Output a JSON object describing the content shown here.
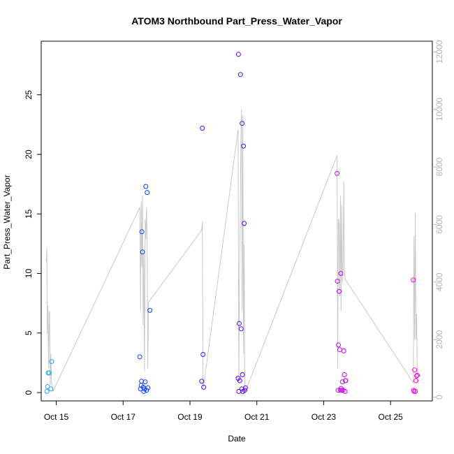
{
  "chart_data": {
    "type": "scatter",
    "title": "ATOM3 Northbound Part_Press_Water_Vapor",
    "xlabel": "Date",
    "ylabel": "Part_Press_Water_Vapor",
    "x_axis": {
      "unit": "day (October)",
      "range": [
        14.55,
        26.25
      ],
      "ticks": [
        15,
        17,
        19,
        21,
        23,
        25
      ],
      "tick_labels": [
        "Oct 15",
        "Oct 17",
        "Oct 19",
        "Oct 21",
        "Oct 23",
        "Oct 25"
      ]
    },
    "y_axis": {
      "range": [
        -0.7,
        29.5
      ],
      "ticks": [
        0,
        5,
        10,
        15,
        20,
        25
      ],
      "tick_labels": [
        "0",
        "5",
        "10",
        "15",
        "20",
        "25"
      ]
    },
    "y2_axis": {
      "range": [
        -130,
        12370
      ],
      "ticks": [
        0,
        2000,
        4000,
        6000,
        8000,
        10000,
        12000
      ],
      "tick_labels": [
        "0",
        "2000",
        "4000",
        "6000",
        "8000",
        "10000",
        "12000"
      ],
      "color": "#b4b4b4"
    },
    "grid": false,
    "legend": "none",
    "series": [
      {
        "style": "points",
        "marker": "open-circle",
        "colors_by_time": [
          "#22aaee",
          "#0044ff",
          "#5500ff",
          "#bb00ff",
          "#ff00dd"
        ],
        "points": [
          [
            14.72,
            0.1
          ],
          [
            14.74,
            0.5
          ],
          [
            14.76,
            1.65
          ],
          [
            14.79,
            1.65
          ],
          [
            14.84,
            0.3
          ],
          [
            14.86,
            2.6
          ],
          [
            17.5,
            3.0
          ],
          [
            17.52,
            0.3
          ],
          [
            17.54,
            0.6
          ],
          [
            17.55,
            0.95
          ],
          [
            17.56,
            13.5
          ],
          [
            17.58,
            11.8
          ],
          [
            17.6,
            0.45
          ],
          [
            17.62,
            0.1
          ],
          [
            17.64,
            0.3
          ],
          [
            17.66,
            0.9
          ],
          [
            17.68,
            17.3
          ],
          [
            17.7,
            0.2
          ],
          [
            17.72,
            16.8
          ],
          [
            17.74,
            0.4
          ],
          [
            17.8,
            6.9
          ],
          [
            19.35,
            0.95
          ],
          [
            19.37,
            22.2
          ],
          [
            19.39,
            3.2
          ],
          [
            19.41,
            0.45
          ],
          [
            20.44,
            1.2
          ],
          [
            20.45,
            28.4
          ],
          [
            20.46,
            0.1
          ],
          [
            20.47,
            5.8
          ],
          [
            20.49,
            1.0
          ],
          [
            20.51,
            26.7
          ],
          [
            20.53,
            5.35
          ],
          [
            20.55,
            0.3
          ],
          [
            20.56,
            22.6
          ],
          [
            20.57,
            1.5
          ],
          [
            20.58,
            0.1
          ],
          [
            20.6,
            20.7
          ],
          [
            20.62,
            14.2
          ],
          [
            20.64,
            0.2
          ],
          [
            20.66,
            0.4
          ],
          [
            23.4,
            18.4
          ],
          [
            23.41,
            9.35
          ],
          [
            23.43,
            0.2
          ],
          [
            23.44,
            4.0
          ],
          [
            23.46,
            8.5
          ],
          [
            23.48,
            3.6
          ],
          [
            23.5,
            0.2
          ],
          [
            23.51,
            10.0
          ],
          [
            23.52,
            0.35
          ],
          [
            23.54,
            0.2
          ],
          [
            23.56,
            0.9
          ],
          [
            23.58,
            0.2
          ],
          [
            23.6,
            3.5
          ],
          [
            23.62,
            1.5
          ],
          [
            23.64,
            0.1
          ],
          [
            23.65,
            1.0
          ],
          [
            23.66,
            1.0
          ],
          [
            25.68,
            9.45
          ],
          [
            25.69,
            0.2
          ],
          [
            25.7,
            0.1
          ],
          [
            25.72,
            1.9
          ],
          [
            25.74,
            0.1
          ],
          [
            25.76,
            1.0
          ],
          [
            25.78,
            1.4
          ],
          [
            25.8,
            1.45
          ]
        ]
      },
      {
        "style": "line",
        "axis": "y2",
        "color": "#c8c8c8",
        "points": [
          [
            14.7,
            4700
          ],
          [
            14.72,
            5200
          ],
          [
            14.73,
            2200
          ],
          [
            14.75,
            3200
          ],
          [
            14.77,
            1000
          ],
          [
            14.79,
            2900
          ],
          [
            14.8,
            3000
          ],
          [
            14.82,
            400
          ],
          [
            14.84,
            1500
          ],
          [
            14.86,
            500
          ],
          [
            14.9,
            200
          ],
          [
            17.5,
            6600
          ],
          [
            17.52,
            3000
          ],
          [
            17.54,
            6800
          ],
          [
            17.56,
            4500
          ],
          [
            17.58,
            7000
          ],
          [
            17.6,
            2500
          ],
          [
            17.62,
            5000
          ],
          [
            17.64,
            900
          ],
          [
            17.66,
            6200
          ],
          [
            17.68,
            5500
          ],
          [
            17.7,
            6600
          ],
          [
            17.72,
            5300
          ],
          [
            17.74,
            1000
          ],
          [
            17.76,
            3300
          ],
          [
            19.35,
            5800
          ],
          [
            19.37,
            6100
          ],
          [
            19.39,
            300
          ],
          [
            19.41,
            400
          ],
          [
            20.44,
            9300
          ],
          [
            20.46,
            500
          ],
          [
            20.48,
            4000
          ],
          [
            20.5,
            6000
          ],
          [
            20.52,
            8500
          ],
          [
            20.54,
            10000
          ],
          [
            20.56,
            3000
          ],
          [
            20.58,
            9800
          ],
          [
            20.6,
            1500
          ],
          [
            20.62,
            5300
          ],
          [
            20.64,
            300
          ],
          [
            20.66,
            200
          ],
          [
            23.4,
            8400
          ],
          [
            23.42,
            1000
          ],
          [
            23.44,
            6200
          ],
          [
            23.46,
            6000
          ],
          [
            23.48,
            3500
          ],
          [
            23.5,
            7000
          ],
          [
            23.52,
            3000
          ],
          [
            23.54,
            6700
          ],
          [
            23.56,
            4000
          ],
          [
            23.58,
            4500
          ],
          [
            23.6,
            7500
          ],
          [
            23.62,
            4400
          ],
          [
            23.64,
            4100
          ],
          [
            25.68,
            500
          ],
          [
            25.7,
            5600
          ],
          [
            25.72,
            2000
          ],
          [
            25.74,
            6400
          ],
          [
            25.76,
            2000
          ],
          [
            25.78,
            2900
          ],
          [
            25.8,
            500
          ]
        ]
      }
    ]
  }
}
